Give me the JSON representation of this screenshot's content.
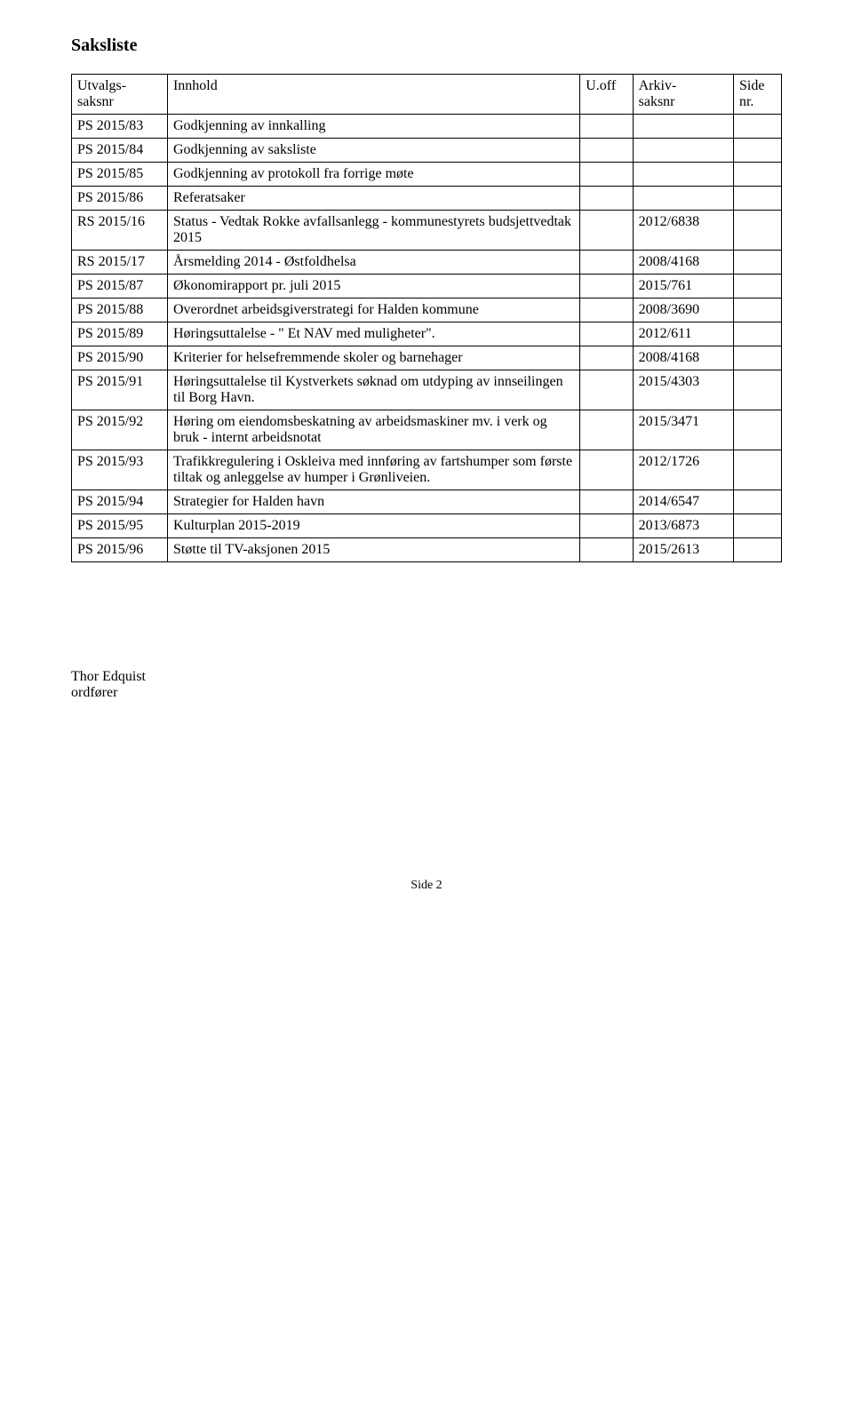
{
  "page": {
    "title": "Saksliste",
    "footer_name": "Thor Edquist",
    "footer_title": "ordfører",
    "page_number": "Side 2"
  },
  "table": {
    "headers": {
      "col1a": "Utvalgs-",
      "col1b": "saksnr",
      "col2": "Innhold",
      "col3": "U.off",
      "col4a": "Arkiv-",
      "col4b": "saksnr",
      "col5a": "Side",
      "col5b": "nr."
    },
    "rows": [
      {
        "id": "PS 2015/83",
        "content": "Godkjenning av innkalling",
        "arkiv": ""
      },
      {
        "id": "PS 2015/84",
        "content": "Godkjenning av saksliste",
        "arkiv": ""
      },
      {
        "id": "PS 2015/85",
        "content": "Godkjenning av protokoll fra forrige møte",
        "arkiv": ""
      },
      {
        "id": "PS 2015/86",
        "content": "Referatsaker",
        "arkiv": ""
      },
      {
        "id": "RS 2015/16",
        "content": "Status - Vedtak Rokke avfallsanlegg - kommunestyrets budsjettvedtak 2015",
        "arkiv": "2012/6838"
      },
      {
        "id": "RS 2015/17",
        "content": "Årsmelding 2014 - Østfoldhelsa",
        "arkiv": "2008/4168"
      },
      {
        "id": "PS 2015/87",
        "content": "Økonomirapport pr. juli 2015",
        "arkiv": "2015/761"
      },
      {
        "id": "PS 2015/88",
        "content": "Overordnet arbeidsgiverstrategi for Halden kommune",
        "arkiv": "2008/3690"
      },
      {
        "id": "PS 2015/89",
        "content": "Høringsuttalelse - \" Et NAV med muligheter\".",
        "arkiv": "2012/611"
      },
      {
        "id": "PS 2015/90",
        "content": "Kriterier for helsefremmende skoler og barnehager",
        "arkiv": "2008/4168"
      },
      {
        "id": "PS 2015/91",
        "content": "Høringsuttalelse til Kystverkets søknad om utdyping av innseilingen til Borg Havn.",
        "arkiv": "2015/4303"
      },
      {
        "id": "PS 2015/92",
        "content": "Høring om eiendomsbeskatning av arbeidsmaskiner mv. i verk og bruk - internt arbeidsnotat",
        "arkiv": "2015/3471"
      },
      {
        "id": "PS 2015/93",
        "content": "Trafikkregulering i Oskleiva med innføring av fartshumper som første tiltak og anleggelse av humper i Grønliveien.",
        "arkiv": "2012/1726"
      },
      {
        "id": "PS 2015/94",
        "content": "Strategier for Halden havn",
        "arkiv": "2014/6547"
      },
      {
        "id": "PS 2015/95",
        "content": "Kulturplan 2015-2019",
        "arkiv": "2013/6873"
      },
      {
        "id": "PS 2015/96",
        "content": "Støtte til TV-aksjonen 2015",
        "arkiv": "2015/2613"
      }
    ]
  }
}
